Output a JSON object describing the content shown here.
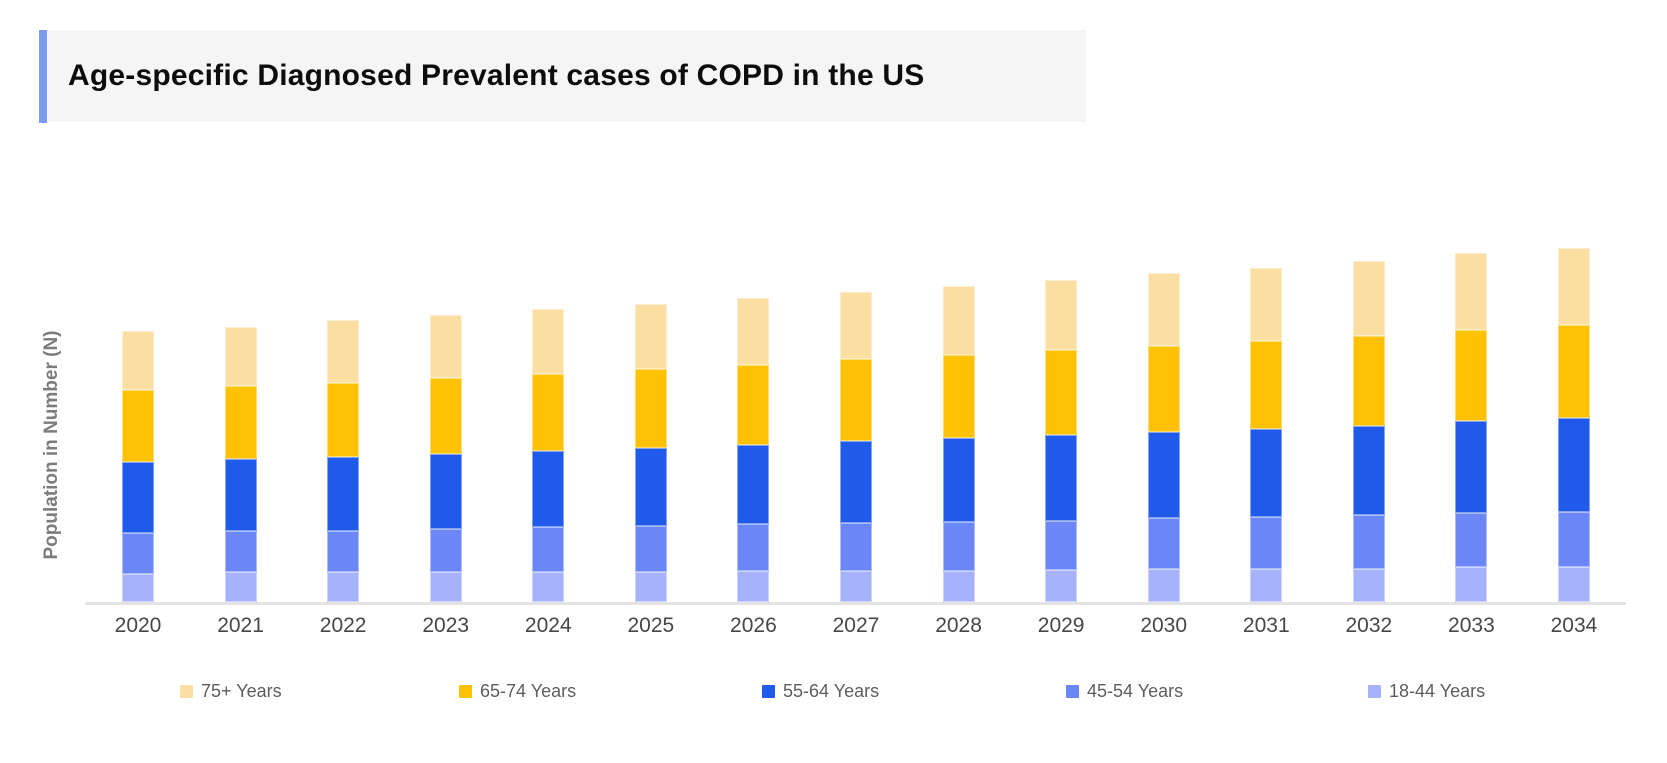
{
  "title": {
    "text": "Age-specific Diagnosed Prevalent cases of COPD in the US"
  },
  "colors": {
    "accent_bar": "#7E99F0",
    "title_background": "#F5F5F6",
    "axis_line": "#E3E3E3",
    "x_label_text": "#474747",
    "y_label_text": "#7C7C7C",
    "legend_text": "#5D5D5D"
  },
  "chart_data": {
    "type": "bar",
    "stacked": true,
    "title": "Age-specific Diagnosed Prevalent cases of COPD in the US",
    "xlabel": "",
    "ylabel": "Population in Number (N)",
    "categories": [
      "2020",
      "2021",
      "2022",
      "2023",
      "2024",
      "2025",
      "2026",
      "2027",
      "2028",
      "2029",
      "2030",
      "2031",
      "2032",
      "2033",
      "2034"
    ],
    "series": [
      {
        "name": "75+ Years",
        "color": "#FBDFA2",
        "values": [
          59,
          59,
          63,
          63,
          65,
          65,
          67,
          67,
          69,
          70,
          73,
          73,
          75,
          77,
          77
        ]
      },
      {
        "name": "65-74 Years",
        "color": "#FFC103",
        "values": [
          72,
          73,
          74,
          76,
          77,
          79,
          80,
          82,
          83,
          85,
          86,
          88,
          90,
          91,
          93
        ]
      },
      {
        "name": "55-64 Years",
        "color": "#1F5AEA",
        "values": [
          71,
          72,
          74,
          75,
          76,
          78,
          79,
          82,
          84,
          86,
          86,
          88,
          89,
          92,
          94
        ]
      },
      {
        "name": "45-54 Years",
        "color": "#6B87F7",
        "values": [
          41,
          41,
          41,
          43,
          45,
          46,
          47,
          48,
          49,
          49,
          51,
          52,
          54,
          54,
          55
        ]
      },
      {
        "name": "18-44 Years",
        "color": "#A6B3FA",
        "values": [
          28,
          30,
          30,
          30,
          30,
          30,
          31,
          31,
          31,
          32,
          33,
          33,
          33,
          35,
          35
        ]
      }
    ],
    "stack_order_top_to_bottom": [
      "75+ Years",
      "65-74 Years",
      "55-64 Years",
      "45-54 Years",
      "18-44 Years"
    ],
    "value_units": "relative units (y-axis has no numeric tick labels; values estimated from bar-segment heights, 1 unit = 1 px)",
    "totals": [
      271,
      275,
      282,
      287,
      293,
      298,
      304,
      310,
      316,
      322,
      329,
      334,
      341,
      349,
      354
    ],
    "ylim": [
      0,
      400
    ],
    "grid": false,
    "legend_position": "bottom"
  }
}
